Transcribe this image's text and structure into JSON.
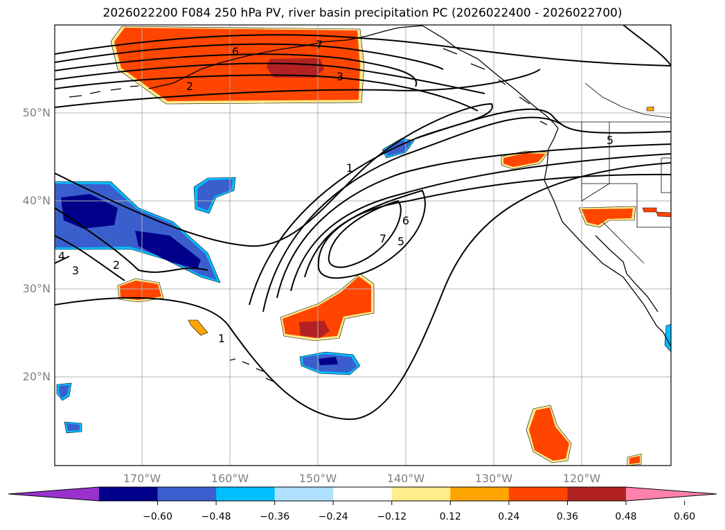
{
  "title": "2026022200 F084 250 hPa PV, river basin precipitation PC (2026022400 - 2026022700)",
  "axes": {
    "lat_labels": [
      "50°N",
      "40°N",
      "30°N",
      "20°N"
    ],
    "lon_labels": [
      "170°W",
      "160°W",
      "150°W",
      "140°W",
      "130°W",
      "120°W"
    ]
  },
  "contour_labels": [
    "1",
    "1",
    "2",
    "2",
    "3",
    "3",
    "4",
    "5",
    "5",
    "6",
    "6",
    "7",
    "7"
  ],
  "colorbar": {
    "ticks": [
      "−0.60",
      "−0.48",
      "−0.36",
      "−0.24",
      "−0.12",
      "0.12",
      "0.24",
      "0.36",
      "0.48",
      "0.60"
    ],
    "colors": [
      "#9932cc",
      "#00008b",
      "#3a5fcd",
      "#00bfff",
      "#b0e2ff",
      "#ffffff",
      "#ffec8b",
      "#ffa500",
      "#ff4500",
      "#b22222",
      "#ff82ab"
    ]
  }
}
